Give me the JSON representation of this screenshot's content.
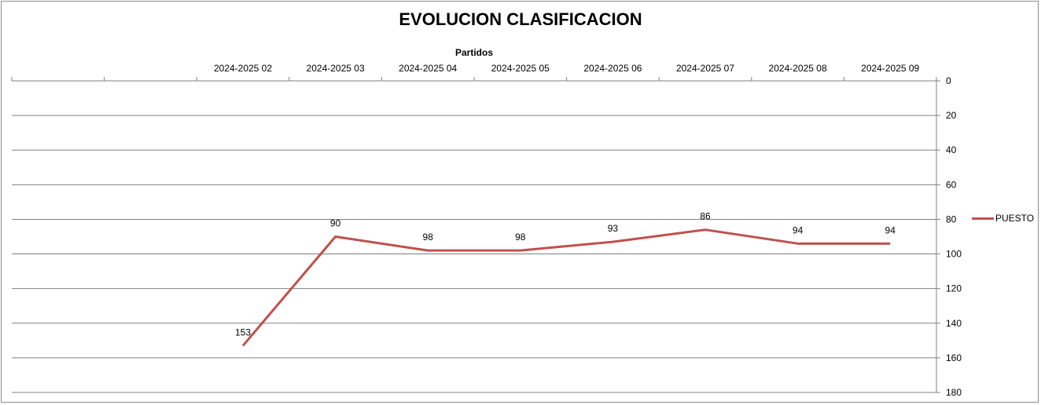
{
  "chart_data": {
    "type": "line",
    "title": "EVOLUCION CLASIFICACION",
    "xlabel": "Partidos",
    "ylabel": "",
    "categories": [
      "",
      "",
      "2024-2025 02",
      "2024-2025 03",
      "2024-2025 04",
      "2024-2025 05",
      "2024-2025 06",
      "2024-2025 07",
      "2024-2025 08",
      "2024-2025 09"
    ],
    "series": [
      {
        "name": "PUESTO",
        "color": "#c0504d",
        "values": [
          null,
          null,
          153,
          90,
          98,
          98,
          93,
          86,
          94,
          94
        ]
      }
    ],
    "ylim": [
      0,
      180
    ],
    "y_reversed": true,
    "y_ticks": [
      0,
      20,
      40,
      60,
      80,
      100,
      120,
      140,
      160,
      180
    ],
    "x_axis_position": "top",
    "y_axis_position": "right",
    "grid": "horizontal",
    "data_labels": true,
    "legend": "right"
  }
}
